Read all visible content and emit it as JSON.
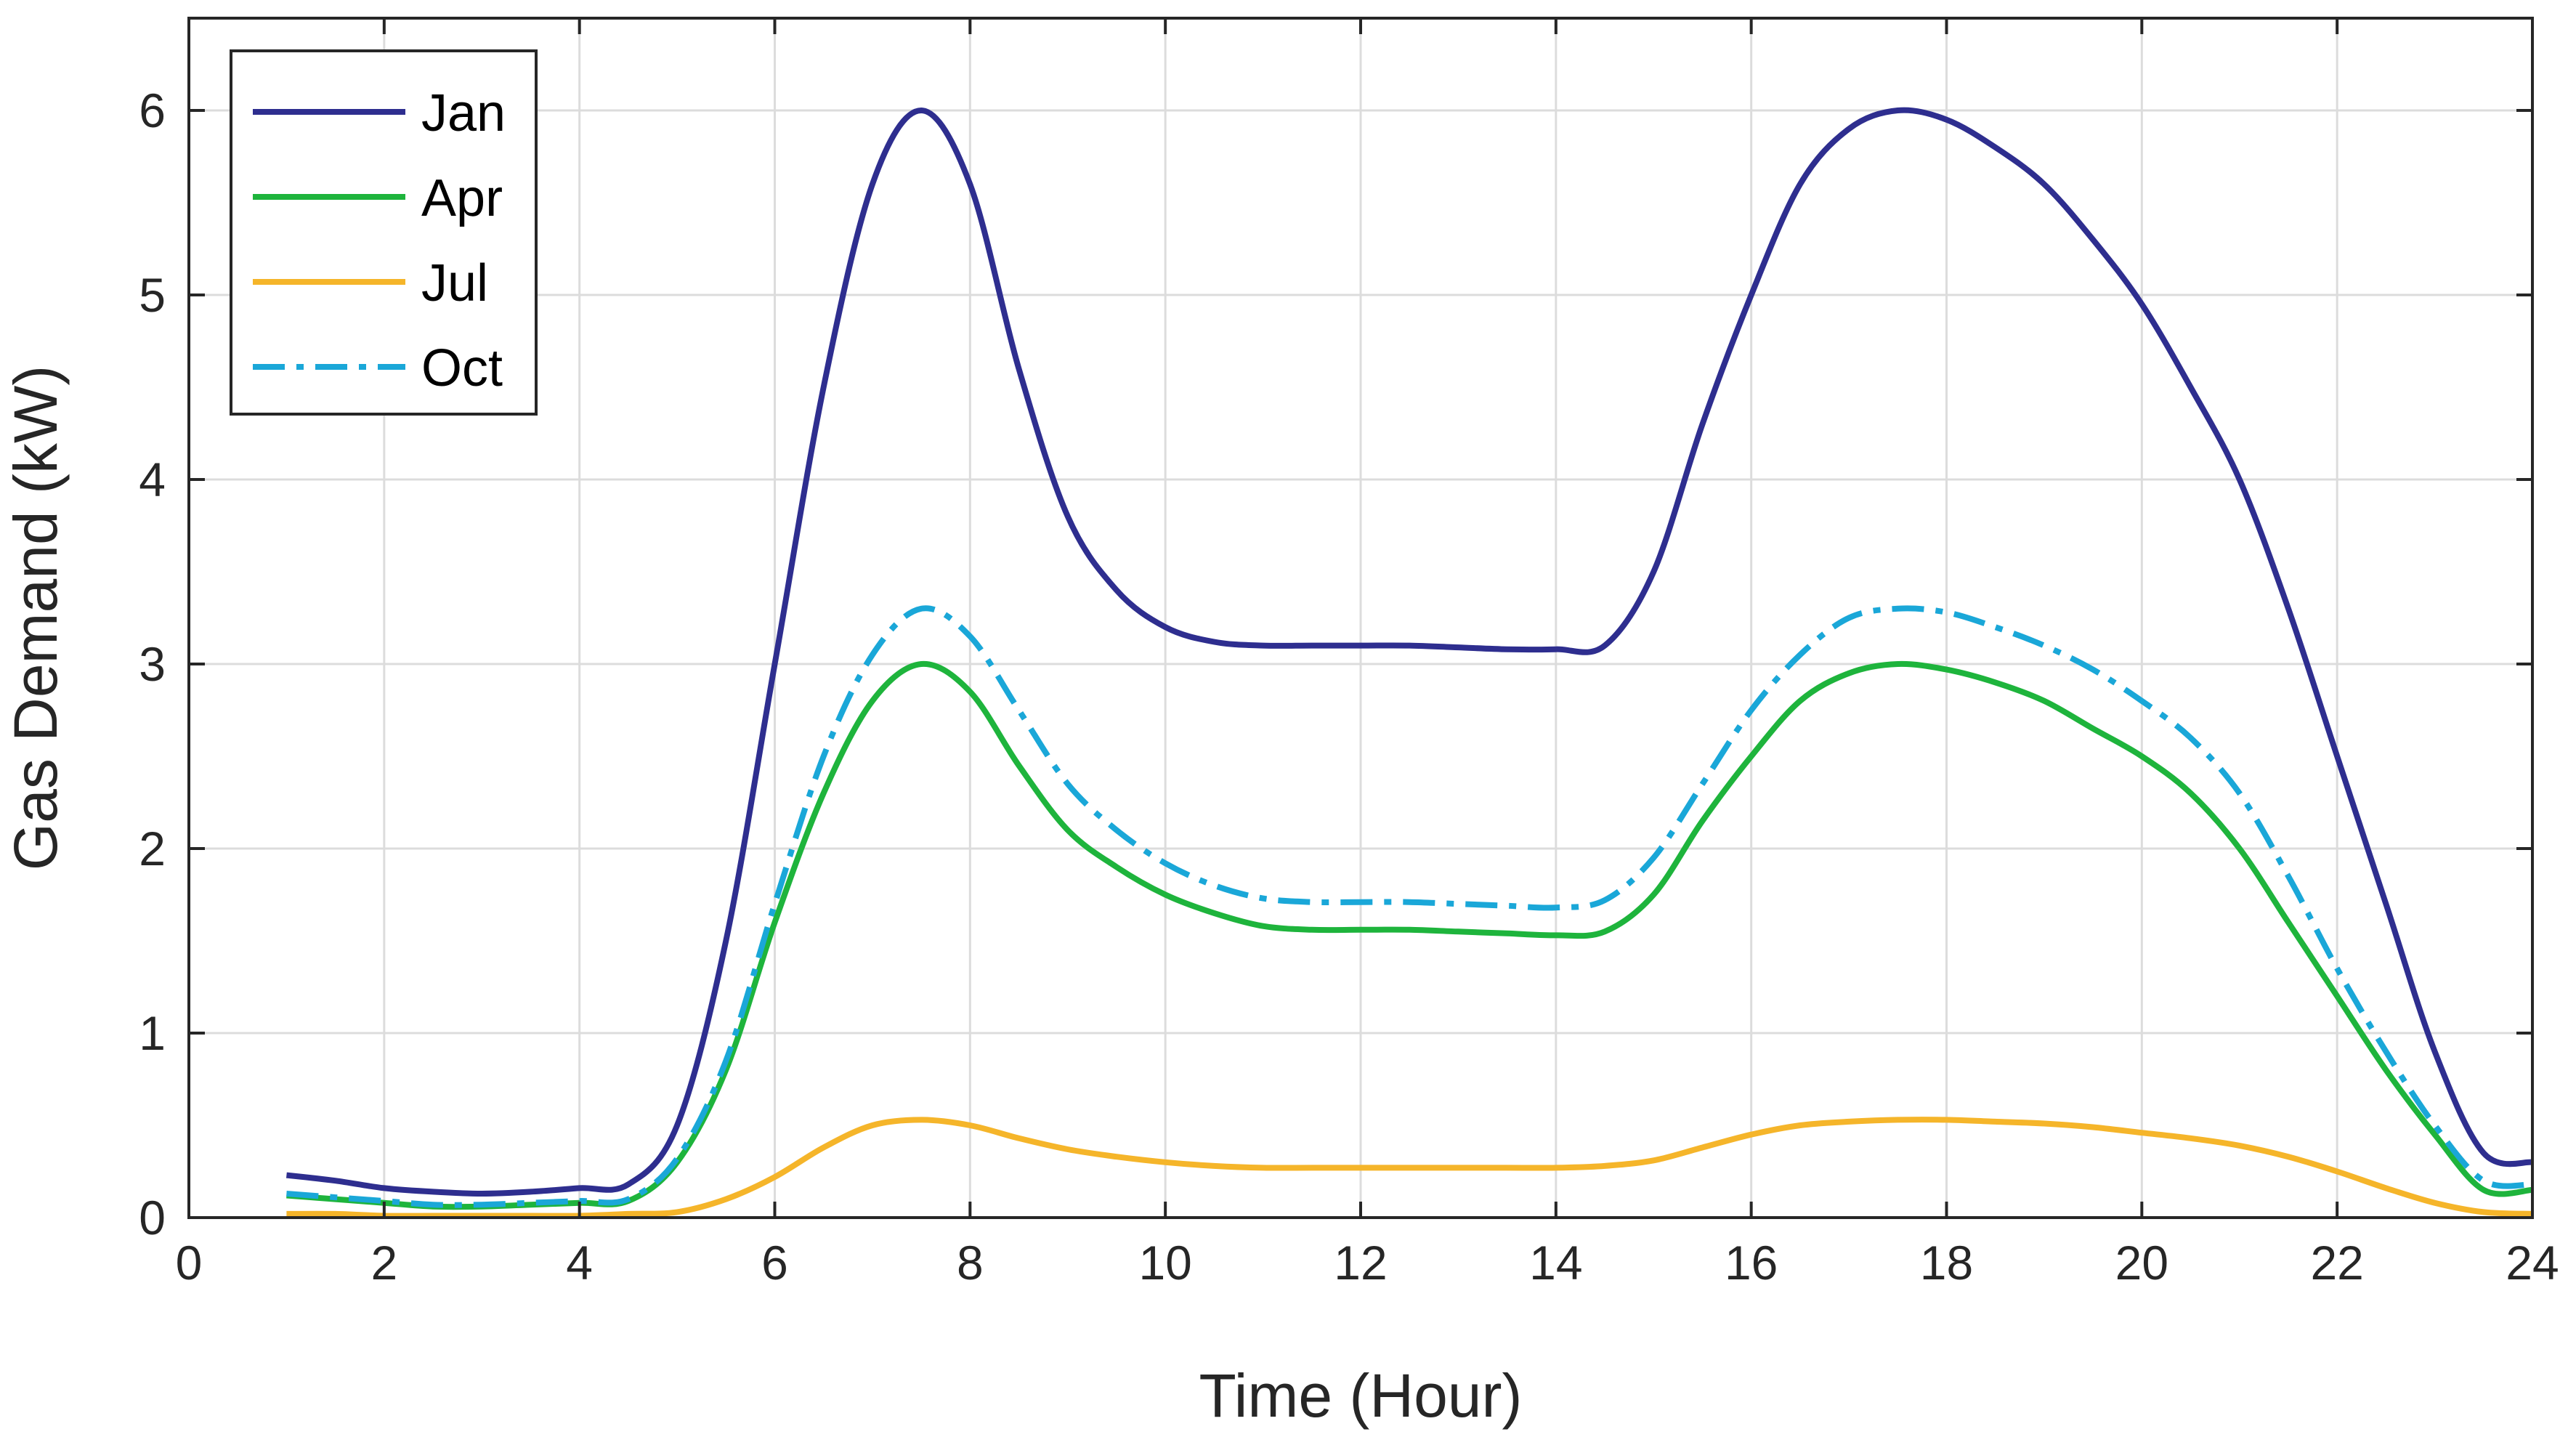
{
  "chart_data": {
    "type": "line",
    "title": "",
    "xlabel": "Time (Hour)",
    "ylabel": "Gas Demand (kW)",
    "xlim": [
      0,
      24
    ],
    "ylim": [
      0,
      6.5
    ],
    "xticks": [
      0,
      2,
      4,
      6,
      8,
      10,
      12,
      14,
      16,
      18,
      20,
      22,
      24
    ],
    "yticks": [
      0,
      1,
      2,
      3,
      4,
      5,
      6
    ],
    "grid": true,
    "legend_position": "top-left",
    "x": [
      1,
      1.5,
      2,
      2.5,
      3,
      3.5,
      4,
      4.5,
      5,
      5.5,
      6,
      6.5,
      7,
      7.5,
      8,
      8.5,
      9,
      9.5,
      10,
      10.5,
      11,
      11.5,
      12,
      12.5,
      13,
      13.5,
      14,
      14.5,
      15,
      15.5,
      16,
      16.5,
      17,
      17.5,
      18,
      18.5,
      19,
      19.5,
      20,
      20.5,
      21,
      21.5,
      22,
      22.5,
      23,
      23.5,
      24
    ],
    "series": [
      {
        "name": "Jan",
        "color": "#2e2e8f",
        "dash": "solid",
        "values": [
          0.23,
          0.2,
          0.16,
          0.14,
          0.13,
          0.14,
          0.16,
          0.18,
          0.5,
          1.5,
          3.0,
          4.5,
          5.6,
          6.0,
          5.6,
          4.6,
          3.8,
          3.4,
          3.2,
          3.12,
          3.1,
          3.1,
          3.1,
          3.1,
          3.09,
          3.08,
          3.08,
          3.1,
          3.5,
          4.3,
          5.0,
          5.6,
          5.9,
          6.0,
          5.95,
          5.8,
          5.6,
          5.3,
          4.95,
          4.5,
          4.0,
          3.3,
          2.5,
          1.7,
          0.9,
          0.35,
          0.3
        ]
      },
      {
        "name": "Apr",
        "color": "#1eb43c",
        "dash": "solid",
        "values": [
          0.12,
          0.1,
          0.08,
          0.06,
          0.06,
          0.07,
          0.08,
          0.09,
          0.3,
          0.8,
          1.6,
          2.3,
          2.8,
          3.0,
          2.85,
          2.45,
          2.1,
          1.9,
          1.75,
          1.65,
          1.58,
          1.56,
          1.56,
          1.56,
          1.55,
          1.54,
          1.53,
          1.55,
          1.75,
          2.15,
          2.5,
          2.8,
          2.95,
          3.0,
          2.97,
          2.9,
          2.8,
          2.65,
          2.5,
          2.3,
          2.0,
          1.6,
          1.2,
          0.8,
          0.45,
          0.15,
          0.15
        ]
      },
      {
        "name": "Jul",
        "color": "#f5b52a",
        "dash": "solid",
        "values": [
          0.02,
          0.02,
          0.01,
          0.01,
          0.01,
          0.01,
          0.01,
          0.02,
          0.03,
          0.1,
          0.22,
          0.38,
          0.5,
          0.53,
          0.5,
          0.43,
          0.37,
          0.33,
          0.3,
          0.28,
          0.27,
          0.27,
          0.27,
          0.27,
          0.27,
          0.27,
          0.27,
          0.28,
          0.31,
          0.38,
          0.45,
          0.5,
          0.52,
          0.53,
          0.53,
          0.52,
          0.51,
          0.49,
          0.46,
          0.43,
          0.39,
          0.33,
          0.25,
          0.16,
          0.08,
          0.03,
          0.02
        ]
      },
      {
        "name": "Oct",
        "color": "#1aa7d8",
        "dash": "dashdot",
        "values": [
          0.13,
          0.11,
          0.09,
          0.07,
          0.07,
          0.08,
          0.09,
          0.1,
          0.32,
          0.85,
          1.7,
          2.5,
          3.05,
          3.3,
          3.15,
          2.75,
          2.35,
          2.1,
          1.92,
          1.8,
          1.73,
          1.71,
          1.71,
          1.71,
          1.7,
          1.69,
          1.68,
          1.72,
          1.95,
          2.35,
          2.75,
          3.05,
          3.25,
          3.3,
          3.28,
          3.2,
          3.1,
          2.97,
          2.8,
          2.6,
          2.3,
          1.85,
          1.35,
          0.9,
          0.5,
          0.2,
          0.18
        ]
      }
    ]
  }
}
